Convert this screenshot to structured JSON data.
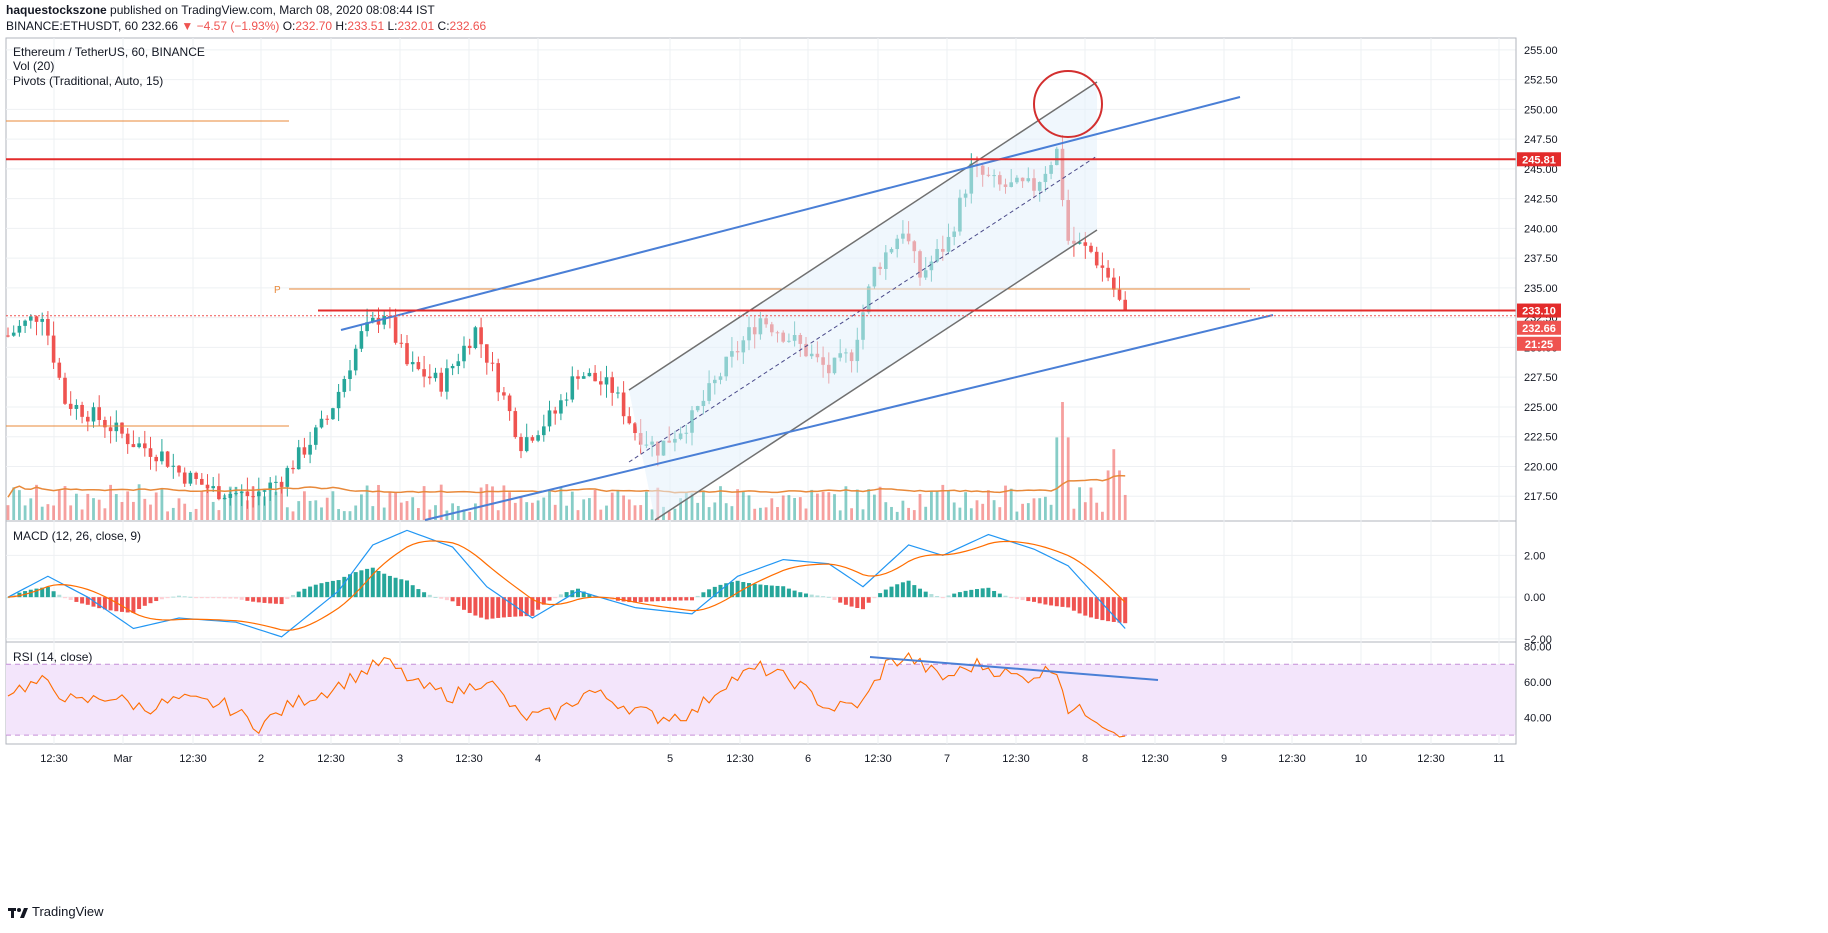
{
  "header": {
    "author": "haquestockszone",
    "published": "published on TradingView.com, March 08, 2020 08:08:44 IST",
    "symbol": "BINANCE:ETHUSDT, 60",
    "last": "232.66",
    "change": "▼ −4.57 (−1.93%)",
    "o_label": "O:",
    "o": "232.70",
    "h_label": "H:",
    "h": "233.51",
    "l_label": "L:",
    "l": "232.01",
    "c_label": "C:",
    "c": "232.66"
  },
  "legend": {
    "title": "Ethereum / TetherUS, 60, BINANCE",
    "vol": "Vol (20)",
    "pivots": "Pivots (Traditional, Auto, 15)",
    "pivot_label": "P"
  },
  "brand": "TradingView",
  "colors": {
    "up": "#26a69a",
    "down": "#ef5350",
    "trend": "#4a7fd6",
    "channel": "#707070",
    "resistance": "#e32b2b",
    "pivot": "#e8893a",
    "macd": "#2196f3",
    "signal": "#ff6d00",
    "rsi": "#ff6d00",
    "rsi_band": "#f3e5fb"
  },
  "chart_data": [
    {
      "type": "candlestick",
      "title": "Ethereum / TetherUS, 60, BINANCE",
      "x_ticks": [
        "12:30",
        "Mar",
        "12:30",
        "2",
        "12:30",
        "3",
        "12:30",
        "4",
        "5",
        "12:30",
        "6",
        "12:30",
        "7",
        "12:30",
        "8",
        "12:30",
        "9",
        "12:30",
        "10",
        "12:30",
        "11"
      ],
      "y_ticks": [
        "255.00",
        "252.50",
        "250.00",
        "247.50",
        "245.00",
        "242.50",
        "240.00",
        "237.50",
        "235.00",
        "232.50",
        "230.00",
        "227.50",
        "225.00",
        "222.50",
        "220.00",
        "217.50"
      ],
      "ylim": [
        215.5,
        256.0
      ],
      "price_labels": [
        "245.81",
        "233.10",
        "232.66",
        "21:25"
      ],
      "resistance_levels": [
        245.81,
        233.1
      ],
      "last_price": 232.66,
      "close_path": [
        {
          "bar": 0,
          "close": 231.0
        },
        {
          "bar": 6,
          "close": 233.0
        },
        {
          "bar": 10,
          "close": 225.5
        },
        {
          "bar": 16,
          "close": 224.0
        },
        {
          "bar": 22,
          "close": 222.0
        },
        {
          "bar": 27,
          "close": 221.0
        },
        {
          "bar": 30,
          "close": 219.5
        },
        {
          "bar": 36,
          "close": 218.0
        },
        {
          "bar": 43,
          "close": 217.5
        },
        {
          "bar": 48,
          "close": 219.0
        },
        {
          "bar": 56,
          "close": 224.0
        },
        {
          "bar": 62,
          "close": 231.0
        },
        {
          "bar": 66,
          "close": 233.0
        },
        {
          "bar": 70,
          "close": 228.5
        },
        {
          "bar": 76,
          "close": 227.0
        },
        {
          "bar": 82,
          "close": 231.5
        },
        {
          "bar": 86,
          "close": 227.0
        },
        {
          "bar": 90,
          "close": 222.0
        },
        {
          "bar": 96,
          "close": 224.5
        },
        {
          "bar": 100,
          "close": 228.0
        },
        {
          "bar": 106,
          "close": 226.5
        },
        {
          "bar": 110,
          "close": 223.0
        },
        {
          "bar": 114,
          "close": 221.5
        },
        {
          "bar": 120,
          "close": 224.0
        },
        {
          "bar": 126,
          "close": 228.5
        },
        {
          "bar": 132,
          "close": 232.5
        },
        {
          "bar": 138,
          "close": 230.5
        },
        {
          "bar": 144,
          "close": 228.0
        },
        {
          "bar": 148,
          "close": 229.5
        },
        {
          "bar": 152,
          "close": 236.5
        },
        {
          "bar": 157,
          "close": 240.0
        },
        {
          "bar": 160,
          "close": 236.0
        },
        {
          "bar": 165,
          "close": 239.0
        },
        {
          "bar": 169,
          "close": 245.0
        },
        {
          "bar": 174,
          "close": 243.5
        },
        {
          "bar": 180,
          "close": 243.5
        },
        {
          "bar": 184,
          "close": 246.5
        },
        {
          "bar": 186,
          "close": 239.0
        },
        {
          "bar": 190,
          "close": 238.0
        },
        {
          "bar": 193,
          "close": 236.0
        },
        {
          "bar": 196,
          "close": 232.66
        }
      ],
      "volume_spikes": [
        {
          "bar": 185,
          "volume_scale": 1.0
        },
        {
          "bar": 194,
          "volume_scale": 0.6
        }
      ]
    },
    {
      "type": "line",
      "title": "MACD (12, 26, close, 9)",
      "y_ticks": [
        "2.00",
        "0.00",
        "−2.00"
      ],
      "ylim": [
        -2.1,
        3.6
      ],
      "macd_path": [
        {
          "bar": 0,
          "value": 0.0
        },
        {
          "bar": 7,
          "value": 1.0
        },
        {
          "bar": 14,
          "value": 0.0
        },
        {
          "bar": 22,
          "value": -1.5
        },
        {
          "bar": 30,
          "value": -1.0
        },
        {
          "bar": 40,
          "value": -1.2
        },
        {
          "bar": 48,
          "value": -1.9
        },
        {
          "bar": 58,
          "value": 0.3
        },
        {
          "bar": 64,
          "value": 2.5
        },
        {
          "bar": 70,
          "value": 3.2
        },
        {
          "bar": 78,
          "value": 2.4
        },
        {
          "bar": 84,
          "value": 0.5
        },
        {
          "bar": 92,
          "value": -1.0
        },
        {
          "bar": 100,
          "value": 0.3
        },
        {
          "bar": 110,
          "value": -0.5
        },
        {
          "bar": 120,
          "value": -0.8
        },
        {
          "bar": 128,
          "value": 1.0
        },
        {
          "bar": 136,
          "value": 1.8
        },
        {
          "bar": 144,
          "value": 1.6
        },
        {
          "bar": 150,
          "value": 0.5
        },
        {
          "bar": 158,
          "value": 2.5
        },
        {
          "bar": 164,
          "value": 2.0
        },
        {
          "bar": 172,
          "value": 3.0
        },
        {
          "bar": 180,
          "value": 2.3
        },
        {
          "bar": 186,
          "value": 1.5
        },
        {
          "bar": 196,
          "value": -1.5
        }
      ]
    },
    {
      "type": "line",
      "title": "RSI (14, close)",
      "y_ticks": [
        "80.00",
        "60.00",
        "40.00"
      ],
      "ylim": [
        25,
        82
      ],
      "band": [
        30,
        70
      ],
      "rsi_path": [
        {
          "bar": 0,
          "value": 55
        },
        {
          "bar": 6,
          "value": 60
        },
        {
          "bar": 12,
          "value": 48
        },
        {
          "bar": 18,
          "value": 52
        },
        {
          "bar": 24,
          "value": 45
        },
        {
          "bar": 30,
          "value": 50
        },
        {
          "bar": 38,
          "value": 47
        },
        {
          "bar": 44,
          "value": 35
        },
        {
          "bar": 50,
          "value": 48
        },
        {
          "bar": 56,
          "value": 55
        },
        {
          "bar": 62,
          "value": 65
        },
        {
          "bar": 66,
          "value": 72
        },
        {
          "bar": 72,
          "value": 58
        },
        {
          "bar": 78,
          "value": 52
        },
        {
          "bar": 84,
          "value": 62
        },
        {
          "bar": 90,
          "value": 40
        },
        {
          "bar": 96,
          "value": 42
        },
        {
          "bar": 102,
          "value": 55
        },
        {
          "bar": 108,
          "value": 47
        },
        {
          "bar": 114,
          "value": 40
        },
        {
          "bar": 120,
          "value": 42
        },
        {
          "bar": 126,
          "value": 60
        },
        {
          "bar": 132,
          "value": 68
        },
        {
          "bar": 138,
          "value": 60
        },
        {
          "bar": 144,
          "value": 45
        },
        {
          "bar": 150,
          "value": 48
        },
        {
          "bar": 154,
          "value": 70
        },
        {
          "bar": 158,
          "value": 74
        },
        {
          "bar": 164,
          "value": 62
        },
        {
          "bar": 170,
          "value": 70
        },
        {
          "bar": 178,
          "value": 62
        },
        {
          "bar": 184,
          "value": 68
        },
        {
          "bar": 186,
          "value": 45
        },
        {
          "bar": 190,
          "value": 42
        },
        {
          "bar": 194,
          "value": 33
        },
        {
          "bar": 196,
          "value": 32
        }
      ]
    }
  ]
}
